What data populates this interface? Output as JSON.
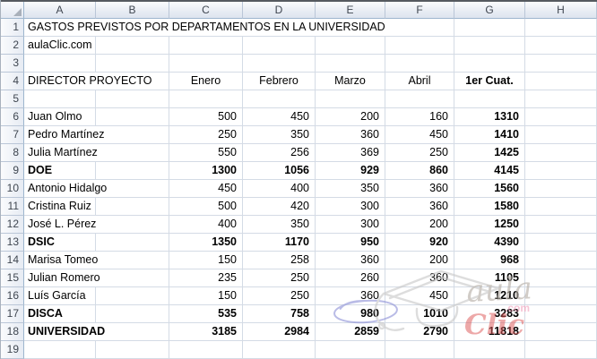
{
  "sheet": {
    "column_letters": [
      "A",
      "B",
      "C",
      "D",
      "E",
      "F",
      "G",
      "H"
    ],
    "row_numbers": [
      "1",
      "2",
      "3",
      "4",
      "5",
      "6",
      "7",
      "8",
      "9",
      "10",
      "11",
      "12",
      "13",
      "14",
      "15",
      "16",
      "17",
      "18",
      "19"
    ],
    "title": "GASTOS PREVISTOS POR DEPARTAMENTOS EN LA UNIVERSIDAD",
    "website": "aulaClic.com",
    "header": {
      "label": "DIRECTOR PROYECTO",
      "months": [
        "Enero",
        "Febrero",
        "Marzo",
        "Abril"
      ],
      "total": "1er Cuat."
    },
    "rows": [
      {
        "row": 6,
        "name": "Juan Olmo",
        "bold": false,
        "values": [
          500,
          450,
          200,
          160,
          1310
        ]
      },
      {
        "row": 7,
        "name": "Pedro Martínez",
        "bold": false,
        "values": [
          250,
          350,
          360,
          450,
          1410
        ]
      },
      {
        "row": 8,
        "name": "Julia Martínez",
        "bold": false,
        "values": [
          550,
          256,
          369,
          250,
          1425
        ]
      },
      {
        "row": 9,
        "name": "DOE",
        "bold": true,
        "values": [
          1300,
          1056,
          929,
          860,
          4145
        ]
      },
      {
        "row": 10,
        "name": "Antonio Hidalgo",
        "bold": false,
        "values": [
          450,
          400,
          350,
          360,
          1560
        ]
      },
      {
        "row": 11,
        "name": "Cristina Ruiz",
        "bold": false,
        "values": [
          500,
          420,
          300,
          360,
          1580
        ]
      },
      {
        "row": 12,
        "name": "José L. Pérez",
        "bold": false,
        "values": [
          400,
          350,
          300,
          200,
          1250
        ]
      },
      {
        "row": 13,
        "name": "DSIC",
        "bold": true,
        "values": [
          1350,
          1170,
          950,
          920,
          4390
        ]
      },
      {
        "row": 14,
        "name": "Marisa Tomeo",
        "bold": false,
        "values": [
          150,
          258,
          360,
          200,
          968
        ]
      },
      {
        "row": 15,
        "name": "Julian Romero",
        "bold": false,
        "values": [
          235,
          250,
          260,
          360,
          1105
        ]
      },
      {
        "row": 16,
        "name": "Luís García",
        "bold": false,
        "values": [
          150,
          250,
          360,
          450,
          1210
        ]
      },
      {
        "row": 17,
        "name": "DISCA",
        "bold": true,
        "values": [
          535,
          758,
          980,
          1010,
          3283
        ]
      },
      {
        "row": 18,
        "name": "UNIVERSIDAD",
        "bold": true,
        "values": [
          3185,
          2984,
          2859,
          2790,
          11818
        ]
      }
    ]
  },
  "watermark": {
    "word_script": "aula",
    "word_domain": ".com",
    "word_brand": "Clic",
    "colors": {
      "script": "#b5aea6",
      "domain": "#f29fba",
      "brand": "#dd5b5b",
      "cap_sketch": "#c9c9c9",
      "ellipse": "#8f93d8"
    }
  },
  "colors": {
    "gridline": "#d4dbe5",
    "header_border": "#9eb6ce",
    "top_edge": "#565a60",
    "bold_total_column": "G"
  }
}
